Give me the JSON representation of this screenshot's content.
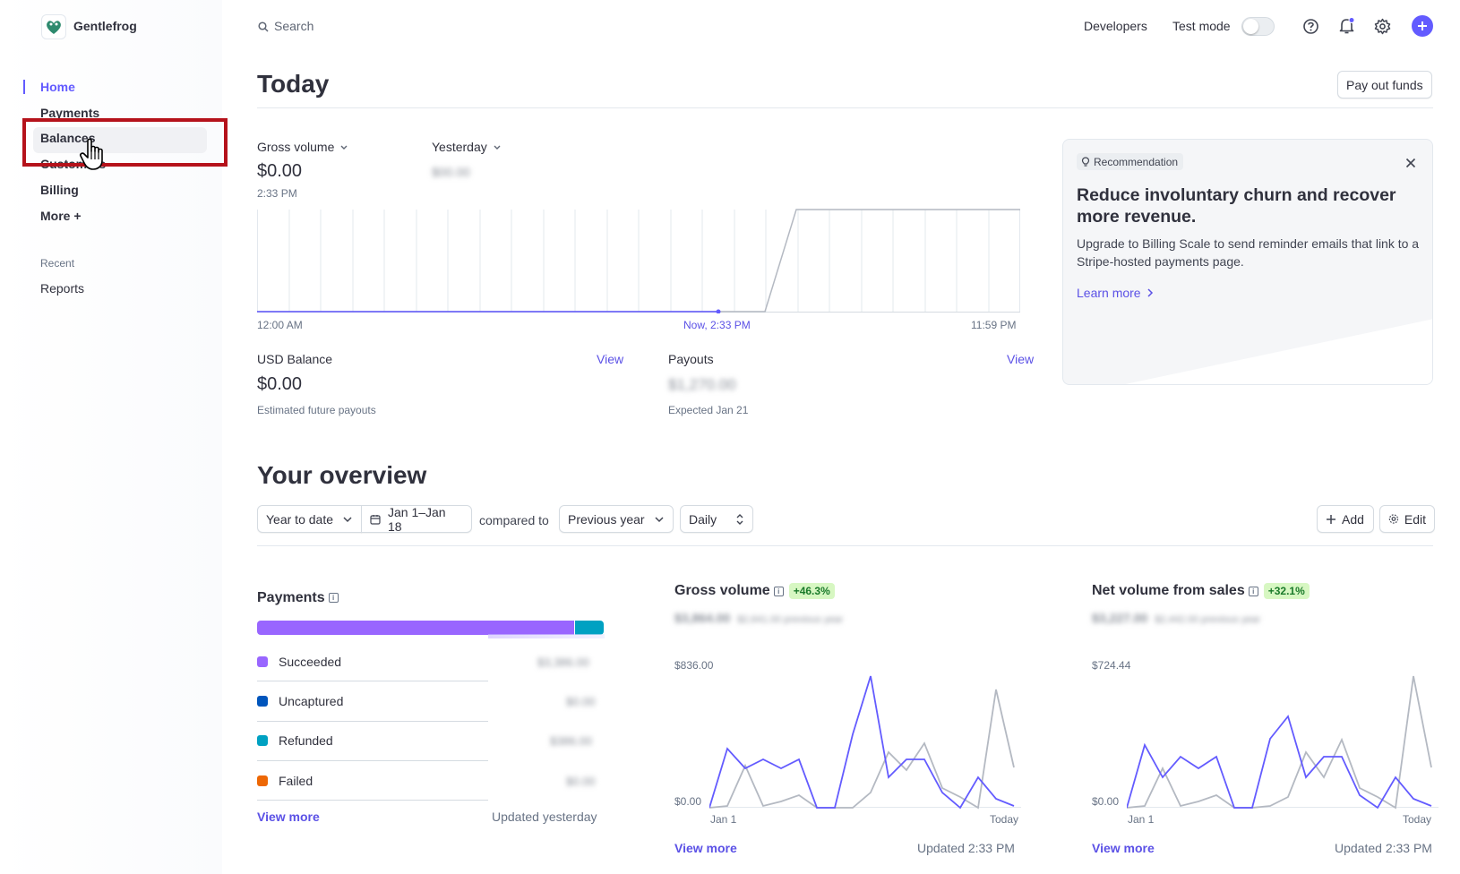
{
  "brand": {
    "name": "Gentlefrog"
  },
  "search": {
    "placeholder": "Search"
  },
  "topbar": {
    "developers": "Developers",
    "test_mode": "Test mode"
  },
  "sidebar": {
    "items": [
      {
        "label": "Home"
      },
      {
        "label": "Payments"
      },
      {
        "label": "Balances"
      },
      {
        "label": "Customers"
      },
      {
        "label": "Billing"
      },
      {
        "label": "More +"
      }
    ],
    "recent_heading": "Recent",
    "recent_items": [
      {
        "label": "Reports"
      }
    ]
  },
  "today": {
    "title": "Today",
    "payout_button": "Pay out funds",
    "gross_label": "Gross volume",
    "gross_value": "$0.00",
    "gross_time": "2:33 PM",
    "compare_label": "Yesterday",
    "compare_value": "$00.00",
    "x_start": "12:00 AM",
    "x_now": "Now, 2:33 PM",
    "x_end": "11:59 PM",
    "usd_balance_label": "USD Balance",
    "usd_balance_view": "View",
    "usd_balance_value": "$0.00",
    "usd_balance_sub": "Estimated future payouts",
    "payouts_label": "Payouts",
    "payouts_view": "View",
    "payouts_value": "$1,270.00",
    "payouts_sub": "Expected Jan 21"
  },
  "recommendation": {
    "tag": "Recommendation",
    "title": "Reduce involuntary churn and recover more revenue.",
    "body": "Upgrade to Billing Scale to send reminder emails that link to a Stripe-hosted payments page.",
    "link": "Learn more"
  },
  "overview": {
    "title": "Your overview",
    "range": "Year to date",
    "dates": "Jan 1–Jan 18",
    "compared_to": "compared to",
    "compare_range": "Previous year",
    "interval": "Daily",
    "add": "Add",
    "edit": "Edit"
  },
  "payments_card": {
    "title": "Payments",
    "rows": [
      {
        "label": "Succeeded",
        "value": "$3,386.00",
        "color": "#9966ff"
      },
      {
        "label": "Uncaptured",
        "value": "$0.00",
        "color": "#0055bc"
      },
      {
        "label": "Refunded",
        "value": "$386.00",
        "color": "#00a1c2"
      },
      {
        "label": "Failed",
        "value": "$0.00",
        "color": "#ed6704"
      }
    ],
    "view_more": "View more",
    "updated": "Updated yesterday"
  },
  "gross_card": {
    "title": "Gross volume",
    "badge": "+46.3%",
    "value": "$3,864.00",
    "prev": "$2,641.00 previous year",
    "y_top": "$836.00",
    "y_bottom": "$0.00",
    "x_start": "Jan 1",
    "x_end": "Today",
    "view_more": "View more",
    "updated": "Updated 2:33 PM"
  },
  "net_card": {
    "title": "Net volume from sales",
    "badge": "+32.1%",
    "value": "$3,227.00",
    "prev": "$2,442.00 previous year",
    "y_top": "$724.44",
    "y_bottom": "$0.00",
    "x_start": "Jan 1",
    "x_end": "Today",
    "view_more": "View more",
    "updated": "Updated 2:33 PM"
  },
  "colors": {
    "accent": "#635bff",
    "highlight_box": "#b5121b"
  }
}
